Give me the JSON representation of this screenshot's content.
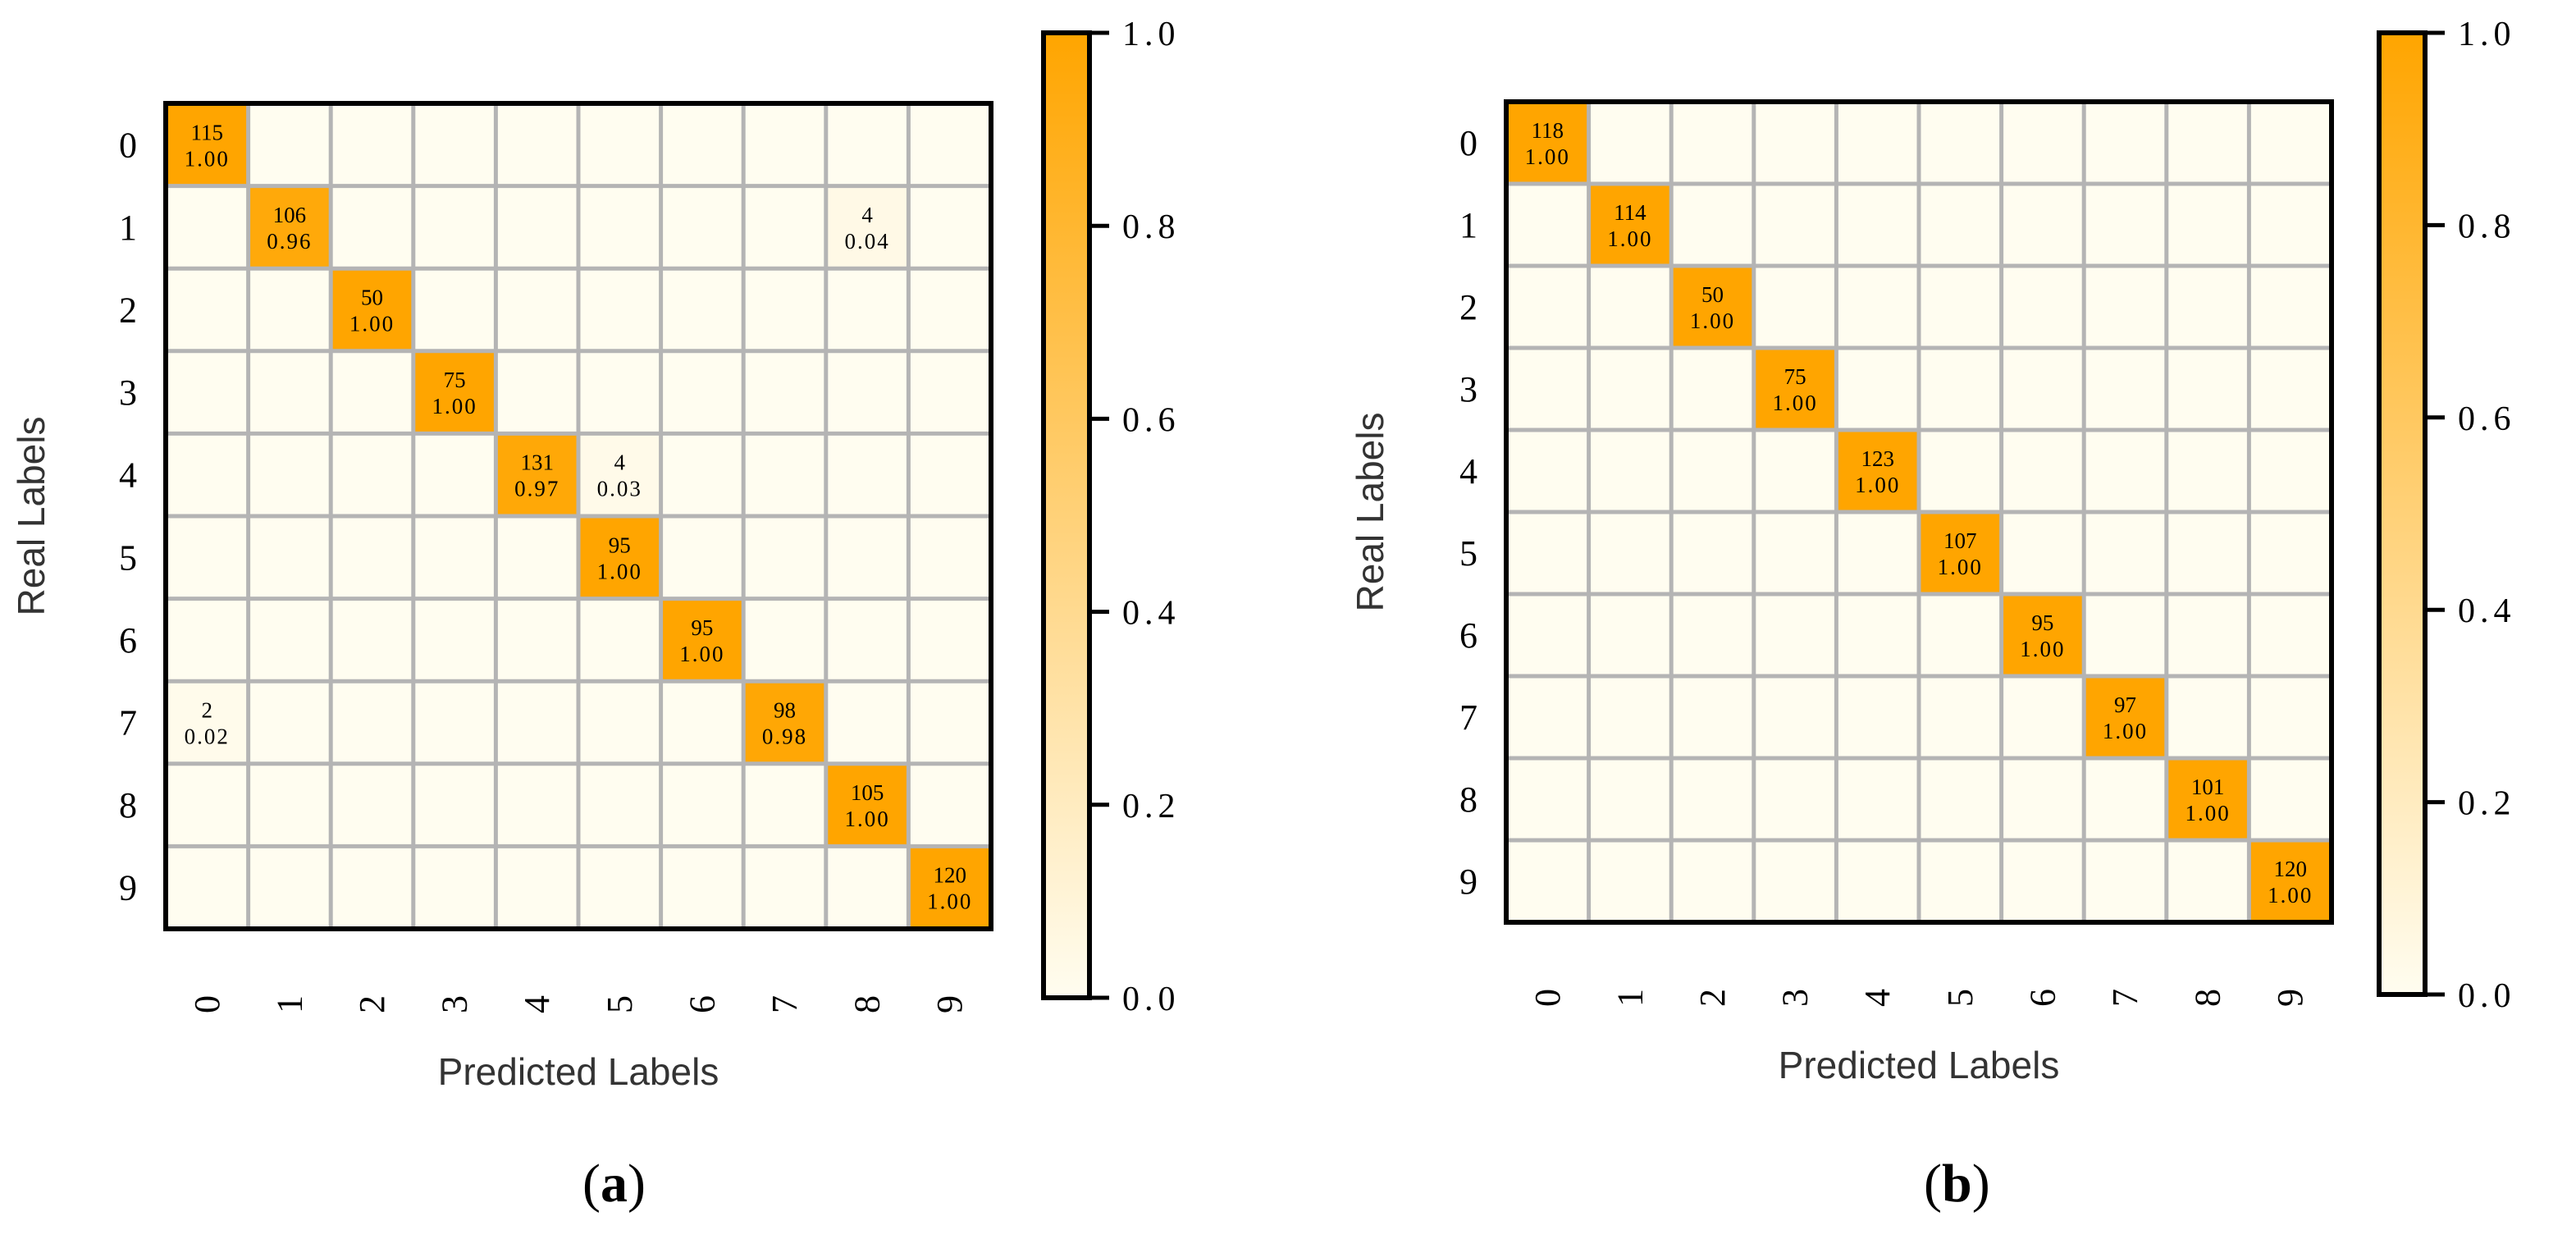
{
  "colors": {
    "max": "#ffa500",
    "min": "#fffdf0",
    "grid": "#b4b4b4",
    "border": "#000000",
    "text": "#000000"
  },
  "chart_data": [
    {
      "type": "heatmap",
      "panel_label": "a",
      "xlabel": "Predicted Labels",
      "ylabel": "Real Labels",
      "x_ticks": [
        "0",
        "1",
        "2",
        "3",
        "4",
        "5",
        "6",
        "7",
        "8",
        "9"
      ],
      "y_ticks": [
        "0",
        "1",
        "2",
        "3",
        "4",
        "5",
        "6",
        "7",
        "8",
        "9"
      ],
      "colorbar": {
        "range": [
          0.0,
          1.0
        ],
        "ticks": [
          "0.0",
          "0.2",
          "0.4",
          "0.6",
          "0.8",
          "1.0"
        ]
      },
      "cells": [
        {
          "row": 0,
          "col": 0,
          "count": "115",
          "ratio": "1.00",
          "value": 1.0
        },
        {
          "row": 1,
          "col": 1,
          "count": "106",
          "ratio": "0.96",
          "value": 0.96
        },
        {
          "row": 1,
          "col": 8,
          "count": "4",
          "ratio": "0.04",
          "value": 0.04
        },
        {
          "row": 2,
          "col": 2,
          "count": "50",
          "ratio": "1.00",
          "value": 1.0
        },
        {
          "row": 3,
          "col": 3,
          "count": "75",
          "ratio": "1.00",
          "value": 1.0
        },
        {
          "row": 4,
          "col": 4,
          "count": "131",
          "ratio": "0.97",
          "value": 0.97
        },
        {
          "row": 4,
          "col": 5,
          "count": "4",
          "ratio": "0.03",
          "value": 0.03
        },
        {
          "row": 5,
          "col": 5,
          "count": "95",
          "ratio": "1.00",
          "value": 1.0
        },
        {
          "row": 6,
          "col": 6,
          "count": "95",
          "ratio": "1.00",
          "value": 1.0
        },
        {
          "row": 7,
          "col": 0,
          "count": "2",
          "ratio": "0.02",
          "value": 0.02
        },
        {
          "row": 7,
          "col": 7,
          "count": "98",
          "ratio": "0.98",
          "value": 0.98
        },
        {
          "row": 8,
          "col": 8,
          "count": "105",
          "ratio": "1.00",
          "value": 1.0
        },
        {
          "row": 9,
          "col": 9,
          "count": "120",
          "ratio": "1.00",
          "value": 1.0
        }
      ]
    },
    {
      "type": "heatmap",
      "panel_label": "b",
      "xlabel": "Predicted Labels",
      "ylabel": "Real Labels",
      "x_ticks": [
        "0",
        "1",
        "2",
        "3",
        "4",
        "5",
        "6",
        "7",
        "8",
        "9"
      ],
      "y_ticks": [
        "0",
        "1",
        "2",
        "3",
        "4",
        "5",
        "6",
        "7",
        "8",
        "9"
      ],
      "colorbar": {
        "range": [
          0.0,
          1.0
        ],
        "ticks": [
          "0.0",
          "0.2",
          "0.4",
          "0.6",
          "0.8",
          "1.0"
        ]
      },
      "cells": [
        {
          "row": 0,
          "col": 0,
          "count": "118",
          "ratio": "1.00",
          "value": 1.0
        },
        {
          "row": 1,
          "col": 1,
          "count": "114",
          "ratio": "1.00",
          "value": 1.0
        },
        {
          "row": 2,
          "col": 2,
          "count": "50",
          "ratio": "1.00",
          "value": 1.0
        },
        {
          "row": 3,
          "col": 3,
          "count": "75",
          "ratio": "1.00",
          "value": 1.0
        },
        {
          "row": 4,
          "col": 4,
          "count": "123",
          "ratio": "1.00",
          "value": 1.0
        },
        {
          "row": 5,
          "col": 5,
          "count": "107",
          "ratio": "1.00",
          "value": 1.0
        },
        {
          "row": 6,
          "col": 6,
          "count": "95",
          "ratio": "1.00",
          "value": 1.0
        },
        {
          "row": 7,
          "col": 7,
          "count": "97",
          "ratio": "1.00",
          "value": 1.0
        },
        {
          "row": 8,
          "col": 8,
          "count": "101",
          "ratio": "1.00",
          "value": 1.0
        },
        {
          "row": 9,
          "col": 9,
          "count": "120",
          "ratio": "1.00",
          "value": 1.0
        }
      ]
    }
  ]
}
